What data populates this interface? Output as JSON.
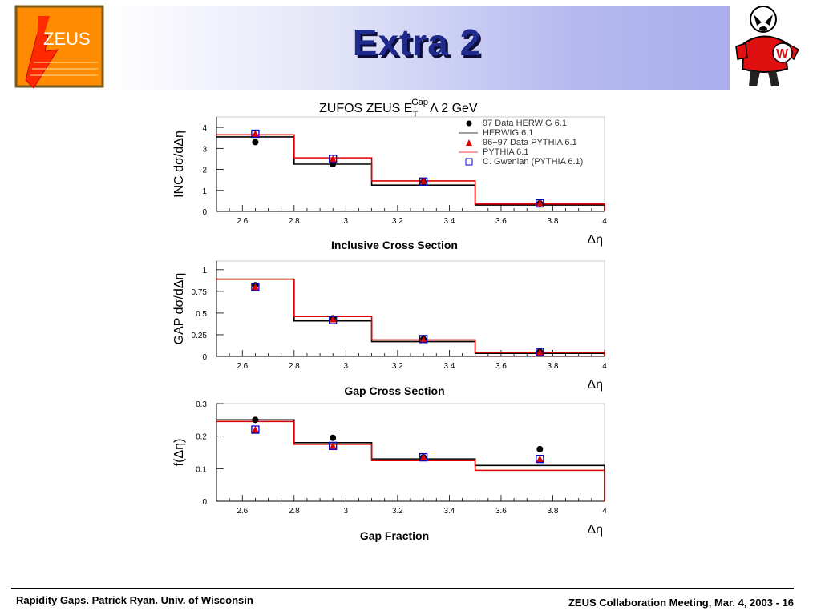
{
  "slide": {
    "title": "Extra 2",
    "zeus_logo_text": "ZEUS",
    "footer_left": "Rapidity Gaps. Patrick Ryan. Univ. of Wisconsin",
    "footer_right": "ZEUS Collaboration Meeting, Mar. 4, 2003 - 16"
  },
  "figure": {
    "title": "ZUFOS ZEUS E",
    "title_sub": "T",
    "title_sup": "Gap",
    "title_rest": "Λ 2 GeV"
  },
  "legend": {
    "entries": [
      {
        "label": "97 Data HERWIG 6.1",
        "marker": "filled-circle",
        "color": "#000000"
      },
      {
        "label": "HERWIG 6.1",
        "marker": "line",
        "color": "#000000"
      },
      {
        "label": "96+97 Data PYTHIA 6.1",
        "marker": "filled-triangle",
        "color": "#e00000"
      },
      {
        "label": "PYTHIA 6.1",
        "marker": "line",
        "color": "#e00000"
      },
      {
        "label": "C. Gwenlan (PYTHIA 6.1)",
        "marker": "open-square",
        "color": "#0000cc"
      }
    ]
  },
  "colors": {
    "herwig": "#000000",
    "pythia": "#e00000",
    "gwenlan": "#0000cc",
    "zeus_orange": "#ff8c00",
    "title_blue": "#1f2a8e"
  },
  "chart_data": [
    {
      "type": "line",
      "subtype": "step-histogram",
      "name": "inclusive",
      "caption": "Inclusive Cross Section",
      "ylabel": "INC dσ/dΔη",
      "xlabel": "Δη",
      "xlim": [
        2.5,
        4.0
      ],
      "ylim": [
        0,
        4.5
      ],
      "x_ticks": [
        "2.6",
        "2.8",
        "3",
        "3.2",
        "3.4",
        "3.6",
        "3.8",
        "4"
      ],
      "y_ticks": [
        "0",
        "1",
        "2",
        "3",
        "4"
      ],
      "bin_edges": [
        2.5,
        2.8,
        3.1,
        3.5,
        4.0
      ],
      "bin_centers": [
        2.65,
        2.95,
        3.3,
        3.75
      ],
      "histograms": [
        {
          "name": "HERWIG 6.1",
          "color": "#000000",
          "values": [
            3.55,
            2.25,
            1.25,
            0.3
          ]
        },
        {
          "name": "PYTHIA 6.1",
          "color": "#e00000",
          "values": [
            3.65,
            2.55,
            1.45,
            0.35
          ]
        }
      ],
      "points": [
        {
          "name": "97 Data HERWIG 6.1",
          "marker": "filled-circle",
          "values": [
            3.3,
            2.25,
            1.4,
            0.38
          ]
        },
        {
          "name": "96+97 Data PYTHIA 6.1",
          "marker": "filled-triangle",
          "values": [
            3.7,
            2.5,
            1.45,
            0.4
          ]
        },
        {
          "name": "C. Gwenlan (PYTHIA 6.1)",
          "marker": "open-square",
          "values": [
            3.7,
            2.5,
            1.42,
            0.38
          ]
        }
      ]
    },
    {
      "type": "line",
      "subtype": "step-histogram",
      "name": "gap",
      "caption": "Gap Cross Section",
      "ylabel": "GAP dσ/dΔη",
      "xlabel": "Δη",
      "xlim": [
        2.5,
        4.0
      ],
      "ylim": [
        0,
        1.1
      ],
      "x_ticks": [
        "2.6",
        "2.8",
        "3",
        "3.2",
        "3.4",
        "3.6",
        "3.8",
        "4"
      ],
      "y_ticks": [
        "0",
        "0.25",
        "0.5",
        "0.75",
        "1"
      ],
      "bin_edges": [
        2.5,
        2.8,
        3.1,
        3.5,
        4.0
      ],
      "bin_centers": [
        2.65,
        2.95,
        3.3,
        3.75
      ],
      "histograms": [
        {
          "name": "HERWIG 6.1",
          "color": "#000000",
          "values": [
            0.89,
            0.41,
            0.17,
            0.035
          ]
        },
        {
          "name": "PYTHIA 6.1",
          "color": "#e00000",
          "values": [
            0.89,
            0.46,
            0.19,
            0.045
          ]
        }
      ],
      "points": [
        {
          "name": "97 Data HERWIG 6.1",
          "marker": "filled-circle",
          "values": [
            0.82,
            0.44,
            0.2,
            0.055
          ]
        },
        {
          "name": "96+97 Data PYTHIA 6.1",
          "marker": "filled-triangle",
          "values": [
            0.8,
            0.43,
            0.19,
            0.05
          ]
        },
        {
          "name": "C. Gwenlan (PYTHIA 6.1)",
          "marker": "open-square",
          "values": [
            0.8,
            0.42,
            0.2,
            0.05
          ]
        }
      ]
    },
    {
      "type": "line",
      "subtype": "step-histogram",
      "name": "fraction",
      "caption": "Gap Fraction",
      "ylabel": "f(Δη)",
      "xlabel": "Δη",
      "xlim": [
        2.5,
        4.0
      ],
      "ylim": [
        0,
        0.3
      ],
      "x_ticks": [
        "2.6",
        "2.8",
        "3",
        "3.2",
        "3.4",
        "3.6",
        "3.8",
        "4"
      ],
      "y_ticks": [
        "0",
        "0.1",
        "0.2",
        "0.3"
      ],
      "bin_edges": [
        2.5,
        2.8,
        3.1,
        3.5,
        4.0
      ],
      "bin_centers": [
        2.65,
        2.95,
        3.3,
        3.75
      ],
      "histograms": [
        {
          "name": "HERWIG 6.1",
          "color": "#000000",
          "values": [
            0.25,
            0.18,
            0.13,
            0.11
          ]
        },
        {
          "name": "PYTHIA 6.1",
          "color": "#e00000",
          "values": [
            0.245,
            0.175,
            0.125,
            0.095
          ]
        }
      ],
      "points": [
        {
          "name": "97 Data HERWIG 6.1",
          "marker": "filled-circle",
          "values": [
            0.25,
            0.195,
            0.135,
            0.16
          ]
        },
        {
          "name": "96+97 Data PYTHIA 6.1",
          "marker": "filled-triangle",
          "values": [
            0.22,
            0.17,
            0.135,
            0.13
          ]
        },
        {
          "name": "C. Gwenlan (PYTHIA 6.1)",
          "marker": "open-square",
          "values": [
            0.22,
            0.17,
            0.135,
            0.13
          ]
        }
      ]
    }
  ]
}
